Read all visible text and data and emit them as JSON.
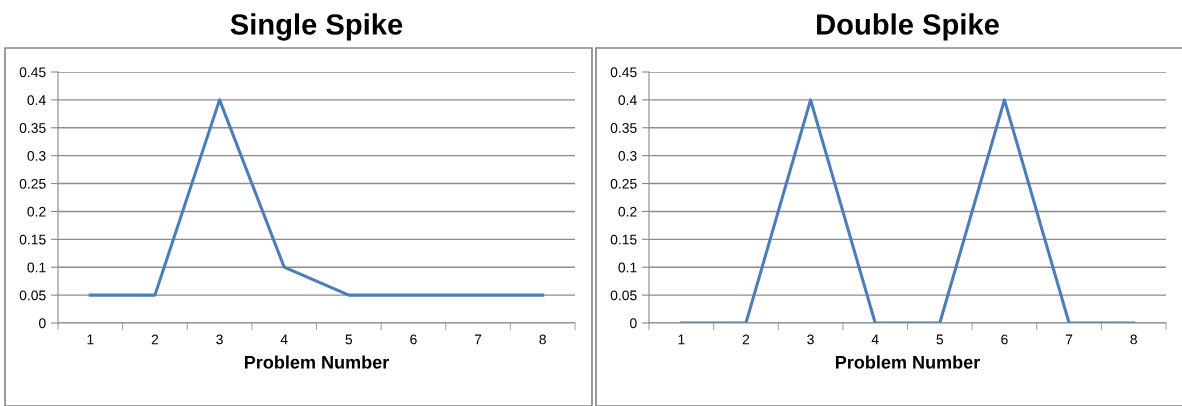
{
  "chart_data": [
    {
      "type": "line",
      "title": "Single Spike",
      "xlabel": "Problem Number",
      "categories": [
        "1",
        "2",
        "3",
        "4",
        "5",
        "6",
        "7",
        "8"
      ],
      "series": [
        {
          "color": "#4a7ebb",
          "values": [
            0.05,
            0.05,
            0.4,
            0.1,
            0.05,
            0.05,
            0.05,
            0.05
          ]
        }
      ],
      "ylim": [
        0,
        0.45
      ],
      "yticks": [
        0,
        0.05,
        0.1,
        0.15,
        0.2,
        0.25,
        0.3,
        0.35,
        0.4,
        0.45
      ],
      "grid": "y",
      "marker": "none",
      "line_style": "solid",
      "legend": false
    },
    {
      "type": "line",
      "title": "Double Spike",
      "xlabel": "Problem Number",
      "categories": [
        "1",
        "2",
        "3",
        "4",
        "5",
        "6",
        "7",
        "8"
      ],
      "series": [
        {
          "color": "#4a7ebb",
          "values": [
            0,
            0,
            0.4,
            0,
            0,
            0.4,
            0,
            0
          ]
        }
      ],
      "ylim": [
        0,
        0.45
      ],
      "yticks": [
        0,
        0.05,
        0.1,
        0.15,
        0.2,
        0.25,
        0.3,
        0.35,
        0.4,
        0.45
      ],
      "grid": "y",
      "marker": "none",
      "line_style": "solid",
      "legend": false
    }
  ]
}
